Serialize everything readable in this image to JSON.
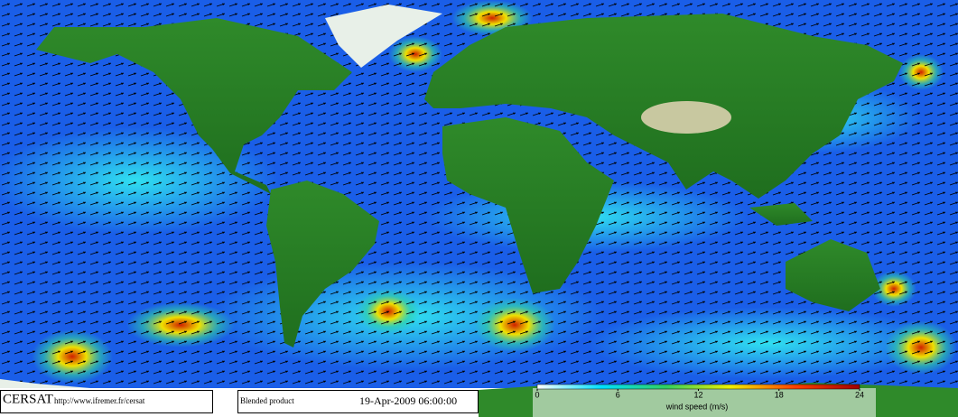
{
  "footer": {
    "logo": "CERSAT",
    "url": "http://www.ifremer.fr/cersat",
    "product": "Blended product",
    "date": "19-Apr-2009 06:00:00"
  },
  "colorbar": {
    "label": "wind speed (m/s)",
    "lim": [
      0,
      24
    ],
    "ticks": [
      0,
      6,
      12,
      18,
      24
    ],
    "colors": [
      "#ffffff",
      "#00e0ff",
      "#30d060",
      "#f0f000",
      "#ff4000",
      "#a00000"
    ]
  }
}
